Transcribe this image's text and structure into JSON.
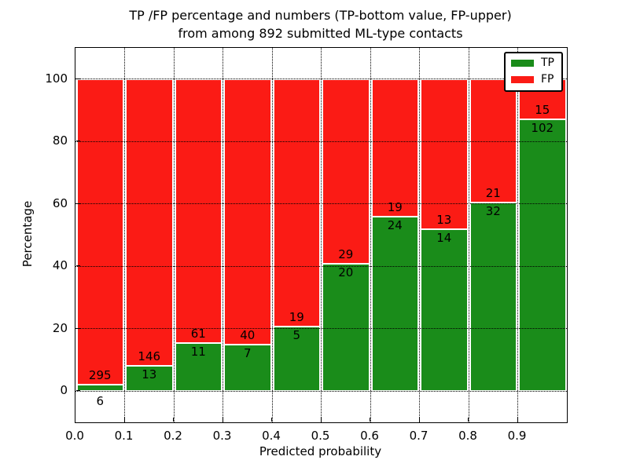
{
  "figure": {
    "title_line1": "TP /FP percentage and numbers (TP-bottom value, FP-upper)",
    "title_line2": "from among 892 submitted ML-type contacts"
  },
  "axes": {
    "xlabel": "Predicted probability",
    "ylabel": "Percentage",
    "x_tick_labels": [
      "0.0",
      "0.1",
      "0.2",
      "0.3",
      "0.4",
      "0.5",
      "0.6",
      "0.7",
      "0.8",
      "0.9"
    ],
    "x_tick_values": [
      0.0,
      0.1,
      0.2,
      0.3,
      0.4,
      0.5,
      0.6,
      0.7,
      0.8,
      0.9
    ],
    "y_tick_labels": [
      "0",
      "20",
      "40",
      "60",
      "80",
      "100"
    ],
    "y_tick_values": [
      0,
      20,
      40,
      60,
      80,
      100
    ]
  },
  "legend": {
    "position": "upper right",
    "items": [
      {
        "label": "TP",
        "color": "#1a8c1a"
      },
      {
        "label": "FP",
        "color": "#fb1b15"
      }
    ]
  },
  "colors": {
    "tp_green": "#1a8c1a",
    "fp_red": "#fb1b15",
    "grid": "#000000",
    "background": "#ffffff"
  },
  "chart_data": {
    "type": "bar",
    "stacked": true,
    "normalized_to_percent": 100,
    "title": "TP /FP percentage and numbers (TP-bottom value, FP-upper) from among 892 submitted ML-type contacts",
    "xlabel": "Predicted probability",
    "ylabel": "Percentage",
    "xlim": [
      0.0,
      1.0
    ],
    "ylim": [
      -10,
      110
    ],
    "grid": true,
    "legend_position": "upper right",
    "total_contacts": 892,
    "categories": [
      "0.0-0.1",
      "0.1-0.2",
      "0.2-0.3",
      "0.3-0.4",
      "0.4-0.5",
      "0.5-0.6",
      "0.6-0.7",
      "0.7-0.8",
      "0.8-0.9",
      "0.9-1.0"
    ],
    "series": [
      {
        "name": "TP",
        "counts": [
          6,
          13,
          11,
          7,
          5,
          20,
          24,
          14,
          32,
          102
        ]
      },
      {
        "name": "FP",
        "counts": [
          295,
          146,
          61,
          40,
          19,
          29,
          19,
          13,
          21,
          15
        ]
      }
    ],
    "bins": [
      {
        "range": [
          0.0,
          0.1
        ],
        "tp": 6,
        "fp": 295,
        "tp_percent": 2.0
      },
      {
        "range": [
          0.1,
          0.2
        ],
        "tp": 13,
        "fp": 146,
        "tp_percent": 8.2
      },
      {
        "range": [
          0.2,
          0.3
        ],
        "tp": 11,
        "fp": 61,
        "tp_percent": 15.3
      },
      {
        "range": [
          0.3,
          0.4
        ],
        "tp": 7,
        "fp": 40,
        "tp_percent": 14.9
      },
      {
        "range": [
          0.4,
          0.5
        ],
        "tp": 5,
        "fp": 19,
        "tp_percent": 20.8
      },
      {
        "range": [
          0.5,
          0.6
        ],
        "tp": 20,
        "fp": 29,
        "tp_percent": 40.8
      },
      {
        "range": [
          0.6,
          0.7
        ],
        "tp": 24,
        "fp": 19,
        "tp_percent": 55.8
      },
      {
        "range": [
          0.7,
          0.8
        ],
        "tp": 14,
        "fp": 13,
        "tp_percent": 51.9
      },
      {
        "range": [
          0.8,
          0.9
        ],
        "tp": 32,
        "fp": 21,
        "tp_percent": 60.4
      },
      {
        "range": [
          0.9,
          1.0
        ],
        "tp": 102,
        "fp": 15,
        "tp_percent": 87.2
      }
    ]
  }
}
